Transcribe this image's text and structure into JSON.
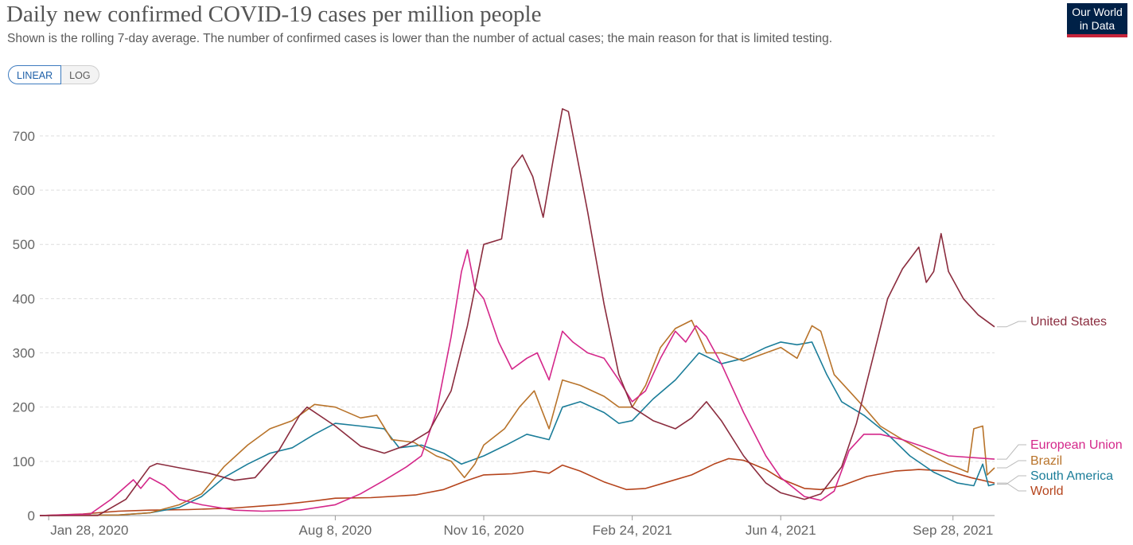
{
  "header": {
    "title": "Daily new confirmed COVID-19 cases per million people",
    "subtitle": "Shown is the rolling 7-day average. The number of confirmed cases is lower than the number of actual cases; the main reason for that is limited testing.",
    "logo_line1": "Our World",
    "logo_line2": "in Data"
  },
  "controls": {
    "linear_label": "LINEAR",
    "log_label": "LOG",
    "selected": "LINEAR"
  },
  "colors": {
    "united_states": "#8b2c3e",
    "european_union": "#d4278a",
    "brazil": "#b8732a",
    "south_america": "#1b7d99",
    "world": "#b5441c",
    "grid": "#dddddd"
  },
  "chart_data": {
    "type": "line",
    "title": "Daily new confirmed COVID-19 cases per million people",
    "xlabel": "",
    "ylabel": "",
    "x_range": [
      "2020-01-22",
      "2021-10-26"
    ],
    "ylim": [
      0,
      760
    ],
    "y_ticks": [
      0,
      100,
      200,
      300,
      400,
      500,
      600,
      700
    ],
    "x_ticks": [
      {
        "date": "2020-01-28",
        "label": "Jan 28, 2020"
      },
      {
        "date": "2020-08-08",
        "label": "Aug 8, 2020"
      },
      {
        "date": "2020-11-16",
        "label": "Nov 16, 2020"
      },
      {
        "date": "2021-02-24",
        "label": "Feb 24, 2021"
      },
      {
        "date": "2021-06-04",
        "label": "Jun 4, 2021"
      },
      {
        "date": "2021-09-28",
        "label": "Sep 28, 2021"
      }
    ],
    "grid": true,
    "legend_placement": "right-end-labels",
    "series": [
      {
        "name": "United States",
        "key": "united_states",
        "points": [
          [
            "2020-01-22",
            0
          ],
          [
            "2020-03-01",
            0
          ],
          [
            "2020-03-20",
            30
          ],
          [
            "2020-04-05",
            90
          ],
          [
            "2020-04-10",
            96
          ],
          [
            "2020-04-25",
            88
          ],
          [
            "2020-05-15",
            78
          ],
          [
            "2020-06-01",
            65
          ],
          [
            "2020-06-15",
            70
          ],
          [
            "2020-07-01",
            120
          ],
          [
            "2020-07-15",
            185
          ],
          [
            "2020-07-20",
            200
          ],
          [
            "2020-08-08",
            165
          ],
          [
            "2020-08-25",
            128
          ],
          [
            "2020-09-10",
            115
          ],
          [
            "2020-09-25",
            130
          ],
          [
            "2020-10-10",
            155
          ],
          [
            "2020-10-25",
            230
          ],
          [
            "2020-11-05",
            350
          ],
          [
            "2020-11-16",
            500
          ],
          [
            "2020-11-28",
            510
          ],
          [
            "2020-12-05",
            640
          ],
          [
            "2020-12-12",
            665
          ],
          [
            "2020-12-19",
            625
          ],
          [
            "2020-12-26",
            550
          ],
          [
            "2021-01-02",
            660
          ],
          [
            "2021-01-08",
            750
          ],
          [
            "2021-01-12",
            745
          ],
          [
            "2021-01-25",
            560
          ],
          [
            "2021-02-05",
            390
          ],
          [
            "2021-02-15",
            260
          ],
          [
            "2021-02-24",
            200
          ],
          [
            "2021-03-10",
            175
          ],
          [
            "2021-03-25",
            160
          ],
          [
            "2021-04-05",
            180
          ],
          [
            "2021-04-15",
            210
          ],
          [
            "2021-04-25",
            175
          ],
          [
            "2021-05-10",
            110
          ],
          [
            "2021-05-25",
            60
          ],
          [
            "2021-06-04",
            42
          ],
          [
            "2021-06-20",
            30
          ],
          [
            "2021-07-01",
            40
          ],
          [
            "2021-07-15",
            90
          ],
          [
            "2021-07-25",
            170
          ],
          [
            "2021-08-05",
            290
          ],
          [
            "2021-08-15",
            400
          ],
          [
            "2021-08-25",
            455
          ],
          [
            "2021-09-05",
            495
          ],
          [
            "2021-09-10",
            430
          ],
          [
            "2021-09-15",
            450
          ],
          [
            "2021-09-20",
            520
          ],
          [
            "2021-09-25",
            450
          ],
          [
            "2021-10-05",
            400
          ],
          [
            "2021-10-15",
            370
          ],
          [
            "2021-10-26",
            348
          ]
        ]
      },
      {
        "name": "European Union",
        "key": "european_union",
        "points": [
          [
            "2020-01-22",
            0
          ],
          [
            "2020-02-25",
            3
          ],
          [
            "2020-03-10",
            30
          ],
          [
            "2020-03-25",
            66
          ],
          [
            "2020-03-30",
            50
          ],
          [
            "2020-04-05",
            70
          ],
          [
            "2020-04-15",
            55
          ],
          [
            "2020-04-25",
            30
          ],
          [
            "2020-05-10",
            20
          ],
          [
            "2020-06-01",
            10
          ],
          [
            "2020-06-20",
            8
          ],
          [
            "2020-07-15",
            10
          ],
          [
            "2020-08-08",
            20
          ],
          [
            "2020-08-25",
            40
          ],
          [
            "2020-09-10",
            65
          ],
          [
            "2020-09-25",
            90
          ],
          [
            "2020-10-05",
            110
          ],
          [
            "2020-10-15",
            190
          ],
          [
            "2020-10-25",
            330
          ],
          [
            "2020-11-01",
            450
          ],
          [
            "2020-11-05",
            490
          ],
          [
            "2020-11-10",
            420
          ],
          [
            "2020-11-16",
            400
          ],
          [
            "2020-11-26",
            320
          ],
          [
            "2020-12-05",
            270
          ],
          [
            "2020-12-15",
            290
          ],
          [
            "2020-12-22",
            300
          ],
          [
            "2020-12-30",
            250
          ],
          [
            "2021-01-08",
            340
          ],
          [
            "2021-01-15",
            320
          ],
          [
            "2021-01-25",
            300
          ],
          [
            "2021-02-05",
            290
          ],
          [
            "2021-02-15",
            250
          ],
          [
            "2021-02-24",
            210
          ],
          [
            "2021-03-05",
            230
          ],
          [
            "2021-03-15",
            290
          ],
          [
            "2021-03-25",
            340
          ],
          [
            "2021-04-01",
            320
          ],
          [
            "2021-04-08",
            350
          ],
          [
            "2021-04-15",
            330
          ],
          [
            "2021-04-25",
            280
          ],
          [
            "2021-05-10",
            190
          ],
          [
            "2021-05-25",
            110
          ],
          [
            "2021-06-04",
            70
          ],
          [
            "2021-06-20",
            35
          ],
          [
            "2021-07-01",
            28
          ],
          [
            "2021-07-10",
            45
          ],
          [
            "2021-07-20",
            120
          ],
          [
            "2021-07-30",
            150
          ],
          [
            "2021-08-10",
            150
          ],
          [
            "2021-08-25",
            140
          ],
          [
            "2021-09-10",
            125
          ],
          [
            "2021-09-25",
            110
          ],
          [
            "2021-10-26",
            104
          ]
        ]
      },
      {
        "name": "Brazil",
        "key": "brazil",
        "points": [
          [
            "2020-01-22",
            0
          ],
          [
            "2020-03-15",
            1
          ],
          [
            "2020-04-05",
            5
          ],
          [
            "2020-04-25",
            20
          ],
          [
            "2020-05-10",
            40
          ],
          [
            "2020-05-25",
            90
          ],
          [
            "2020-06-10",
            130
          ],
          [
            "2020-06-25",
            160
          ],
          [
            "2020-07-10",
            175
          ],
          [
            "2020-07-25",
            205
          ],
          [
            "2020-08-08",
            200
          ],
          [
            "2020-08-25",
            180
          ],
          [
            "2020-09-05",
            185
          ],
          [
            "2020-09-15",
            140
          ],
          [
            "2020-09-30",
            135
          ],
          [
            "2020-10-15",
            110
          ],
          [
            "2020-10-25",
            100
          ],
          [
            "2020-11-03",
            70
          ],
          [
            "2020-11-10",
            95
          ],
          [
            "2020-11-16",
            130
          ],
          [
            "2020-11-30",
            160
          ],
          [
            "2020-12-10",
            200
          ],
          [
            "2020-12-20",
            230
          ],
          [
            "2020-12-30",
            160
          ],
          [
            "2021-01-08",
            250
          ],
          [
            "2021-01-20",
            240
          ],
          [
            "2021-02-05",
            220
          ],
          [
            "2021-02-15",
            200
          ],
          [
            "2021-02-24",
            200
          ],
          [
            "2021-03-05",
            240
          ],
          [
            "2021-03-15",
            310
          ],
          [
            "2021-03-25",
            345
          ],
          [
            "2021-04-05",
            360
          ],
          [
            "2021-04-15",
            300
          ],
          [
            "2021-04-25",
            300
          ],
          [
            "2021-05-10",
            285
          ],
          [
            "2021-05-25",
            300
          ],
          [
            "2021-06-04",
            310
          ],
          [
            "2021-06-15",
            290
          ],
          [
            "2021-06-25",
            350
          ],
          [
            "2021-07-01",
            340
          ],
          [
            "2021-07-10",
            260
          ],
          [
            "2021-07-20",
            230
          ],
          [
            "2021-07-30",
            200
          ],
          [
            "2021-08-10",
            165
          ],
          [
            "2021-08-25",
            140
          ],
          [
            "2021-09-10",
            115
          ],
          [
            "2021-09-25",
            95
          ],
          [
            "2021-10-08",
            80
          ],
          [
            "2021-10-12",
            160
          ],
          [
            "2021-10-18",
            165
          ],
          [
            "2021-10-21",
            75
          ],
          [
            "2021-10-26",
            88
          ]
        ]
      },
      {
        "name": "South America",
        "key": "south_america",
        "points": [
          [
            "2020-01-22",
            0
          ],
          [
            "2020-03-15",
            1
          ],
          [
            "2020-04-05",
            5
          ],
          [
            "2020-04-25",
            15
          ],
          [
            "2020-05-10",
            35
          ],
          [
            "2020-05-25",
            70
          ],
          [
            "2020-06-10",
            95
          ],
          [
            "2020-06-25",
            115
          ],
          [
            "2020-07-10",
            125
          ],
          [
            "2020-07-25",
            150
          ],
          [
            "2020-08-08",
            170
          ],
          [
            "2020-08-25",
            165
          ],
          [
            "2020-09-10",
            160
          ],
          [
            "2020-09-20",
            125
          ],
          [
            "2020-10-05",
            130
          ],
          [
            "2020-10-20",
            115
          ],
          [
            "2020-11-01",
            95
          ],
          [
            "2020-11-16",
            110
          ],
          [
            "2020-12-01",
            130
          ],
          [
            "2020-12-15",
            150
          ],
          [
            "2020-12-30",
            140
          ],
          [
            "2021-01-08",
            200
          ],
          [
            "2021-01-20",
            210
          ],
          [
            "2021-02-05",
            190
          ],
          [
            "2021-02-15",
            170
          ],
          [
            "2021-02-24",
            175
          ],
          [
            "2021-03-10",
            215
          ],
          [
            "2021-03-25",
            250
          ],
          [
            "2021-04-10",
            300
          ],
          [
            "2021-04-25",
            280
          ],
          [
            "2021-05-10",
            290
          ],
          [
            "2021-05-25",
            310
          ],
          [
            "2021-06-04",
            320
          ],
          [
            "2021-06-15",
            315
          ],
          [
            "2021-06-25",
            320
          ],
          [
            "2021-07-05",
            260
          ],
          [
            "2021-07-15",
            210
          ],
          [
            "2021-07-30",
            185
          ],
          [
            "2021-08-15",
            150
          ],
          [
            "2021-08-30",
            110
          ],
          [
            "2021-09-15",
            80
          ],
          [
            "2021-10-01",
            60
          ],
          [
            "2021-10-12",
            55
          ],
          [
            "2021-10-18",
            95
          ],
          [
            "2021-10-22",
            55
          ],
          [
            "2021-10-26",
            58
          ]
        ]
      },
      {
        "name": "World",
        "key": "world",
        "points": [
          [
            "2020-01-22",
            0
          ],
          [
            "2020-02-20",
            3
          ],
          [
            "2020-03-15",
            8
          ],
          [
            "2020-04-05",
            10
          ],
          [
            "2020-05-01",
            11
          ],
          [
            "2020-06-01",
            14
          ],
          [
            "2020-07-01",
            20
          ],
          [
            "2020-07-25",
            27
          ],
          [
            "2020-08-08",
            32
          ],
          [
            "2020-09-01",
            33
          ],
          [
            "2020-10-01",
            38
          ],
          [
            "2020-10-20",
            48
          ],
          [
            "2020-11-05",
            65
          ],
          [
            "2020-11-16",
            75
          ],
          [
            "2020-12-05",
            77
          ],
          [
            "2020-12-20",
            82
          ],
          [
            "2020-12-30",
            78
          ],
          [
            "2021-01-08",
            93
          ],
          [
            "2021-01-20",
            82
          ],
          [
            "2021-02-05",
            62
          ],
          [
            "2021-02-20",
            48
          ],
          [
            "2021-03-05",
            50
          ],
          [
            "2021-03-20",
            62
          ],
          [
            "2021-04-05",
            75
          ],
          [
            "2021-04-20",
            95
          ],
          [
            "2021-04-30",
            105
          ],
          [
            "2021-05-10",
            102
          ],
          [
            "2021-05-25",
            85
          ],
          [
            "2021-06-04",
            68
          ],
          [
            "2021-06-20",
            50
          ],
          [
            "2021-07-01",
            48
          ],
          [
            "2021-07-15",
            55
          ],
          [
            "2021-08-01",
            72
          ],
          [
            "2021-08-20",
            82
          ],
          [
            "2021-09-05",
            85
          ],
          [
            "2021-09-25",
            82
          ],
          [
            "2021-10-10",
            70
          ],
          [
            "2021-10-26",
            60
          ]
        ]
      }
    ]
  }
}
